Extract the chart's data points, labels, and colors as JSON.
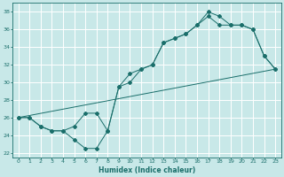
{
  "xlabel": "Humidex (Indice chaleur)",
  "bg_color": "#c8e8e8",
  "grid_color": "#ffffff",
  "line_color": "#1a6e6a",
  "xlim": [
    -0.5,
    23.5
  ],
  "ylim": [
    21.5,
    39.0
  ],
  "xticks": [
    0,
    1,
    2,
    3,
    4,
    5,
    6,
    7,
    8,
    9,
    10,
    11,
    12,
    13,
    14,
    15,
    16,
    17,
    18,
    19,
    20,
    21,
    22,
    23
  ],
  "yticks": [
    22,
    24,
    26,
    28,
    30,
    32,
    34,
    36,
    38
  ],
  "line1_x": [
    0,
    1,
    2,
    3,
    4,
    5,
    6,
    7,
    8,
    9,
    10,
    11,
    12,
    13,
    14,
    15,
    16,
    17,
    18,
    19,
    20,
    21,
    22,
    23
  ],
  "line1_y": [
    26.0,
    26.0,
    25.0,
    24.5,
    24.5,
    25.0,
    26.5,
    26.5,
    24.5,
    29.5,
    30.0,
    31.5,
    32.0,
    34.5,
    35.0,
    35.5,
    36.5,
    37.5,
    36.5,
    36.5,
    36.5,
    36.0,
    33.0,
    31.5
  ],
  "line2_x": [
    0,
    1,
    2,
    3,
    4,
    5,
    6,
    7,
    8,
    9,
    10,
    11,
    12,
    13,
    14,
    15,
    16,
    17,
    18,
    19,
    20,
    21,
    22,
    23
  ],
  "line2_y": [
    26.0,
    26.0,
    25.0,
    24.5,
    24.5,
    23.5,
    22.5,
    22.5,
    24.5,
    29.5,
    31.0,
    31.5,
    32.0,
    34.5,
    35.0,
    35.5,
    36.5,
    38.0,
    37.5,
    36.5,
    36.5,
    36.0,
    33.0,
    31.5
  ],
  "line3_x": [
    0,
    23
  ],
  "line3_y": [
    26.0,
    31.5
  ]
}
